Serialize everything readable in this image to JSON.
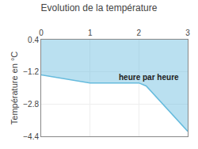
{
  "chart_data": {
    "type": "area",
    "title": "Evolution de la température",
    "ylabel": "Température en °C",
    "x": [
      0,
      0.08,
      1.0,
      2.0,
      2.15,
      3.0
    ],
    "values": [
      -1.35,
      -1.38,
      -1.75,
      -1.75,
      -1.9,
      -4.15
    ],
    "color": "#66bbdd",
    "xlim": [
      0,
      3
    ],
    "ylim": [
      -4.4,
      0.4
    ],
    "xticks": [
      0,
      1,
      2,
      3
    ],
    "yticks": [
      0.4,
      -1.2,
      -2.8,
      -4.4
    ],
    "grid": true,
    "annotations": [
      {
        "text": "heure par heure",
        "x": 1.55,
        "y": -1.45
      }
    ]
  }
}
